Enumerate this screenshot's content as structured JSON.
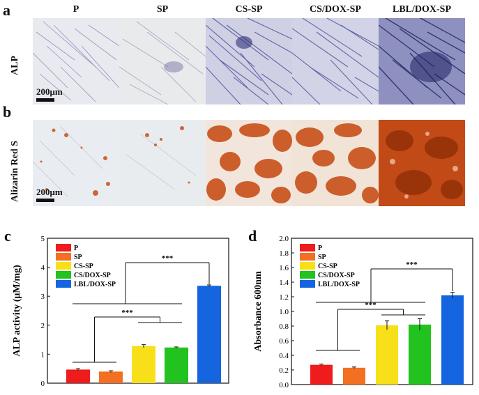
{
  "panels": {
    "a": "a",
    "b": "b",
    "c": "c",
    "d": "d"
  },
  "columns": [
    "P",
    "SP",
    "CS-SP",
    "CS/DOX-SP",
    "LBL/DOX-SP"
  ],
  "rows": {
    "alp": "ALP",
    "ars": "Alizarin Red S"
  },
  "scale_bar": "200μm",
  "colors": {
    "P": "#ee1c1c",
    "SP": "#f36f21",
    "CS-SP": "#f7e019",
    "CS/DOX-SP": "#22c21f",
    "LBL/DOX-SP": "#1565e0",
    "alp_stain": "#3a3a8c",
    "ars_stain": "#c8501a"
  },
  "chart_data": [
    {
      "id": "c",
      "type": "bar",
      "ylabel": "ALP activity (μM/mg)",
      "ylim": [
        0,
        5
      ],
      "yticks": [
        "0",
        "1",
        "2",
        "3",
        "4",
        "5"
      ],
      "series": [
        {
          "name": "P",
          "values": [
            0.47
          ],
          "err": 0.03
        },
        {
          "name": "SP",
          "values": [
            0.4
          ],
          "err": 0.03
        },
        {
          "name": "CS-SP",
          "values": [
            1.28
          ],
          "err": 0.05
        },
        {
          "name": "CS/DOX-SP",
          "values": [
            1.23
          ],
          "err": 0.02
        },
        {
          "name": "LBL/DOX-SP",
          "values": [
            3.36
          ],
          "err": 0.03
        }
      ],
      "significance": [
        "***",
        "***"
      ],
      "legend_position": "top-left"
    },
    {
      "id": "d",
      "type": "bar",
      "ylabel": "Absorbance 600nm",
      "ylim": [
        0,
        2.0
      ],
      "yticks": [
        "0.0",
        "0.2",
        "0.4",
        "0.6",
        "0.8",
        "1.0",
        "1.2",
        "1.4",
        "1.6",
        "1.8",
        "2.0"
      ],
      "series": [
        {
          "name": "P",
          "values": [
            0.27
          ],
          "err": 0.01
        },
        {
          "name": "SP",
          "values": [
            0.23
          ],
          "err": 0.01
        },
        {
          "name": "CS-SP",
          "values": [
            0.81
          ],
          "err": 0.06
        },
        {
          "name": "CS/DOX-SP",
          "values": [
            0.82
          ],
          "err": 0.08
        },
        {
          "name": "LBL/DOX-SP",
          "values": [
            1.22
          ],
          "err": 0.04
        }
      ],
      "significance": [
        "***",
        "***"
      ],
      "legend_position": "top-left"
    }
  ]
}
